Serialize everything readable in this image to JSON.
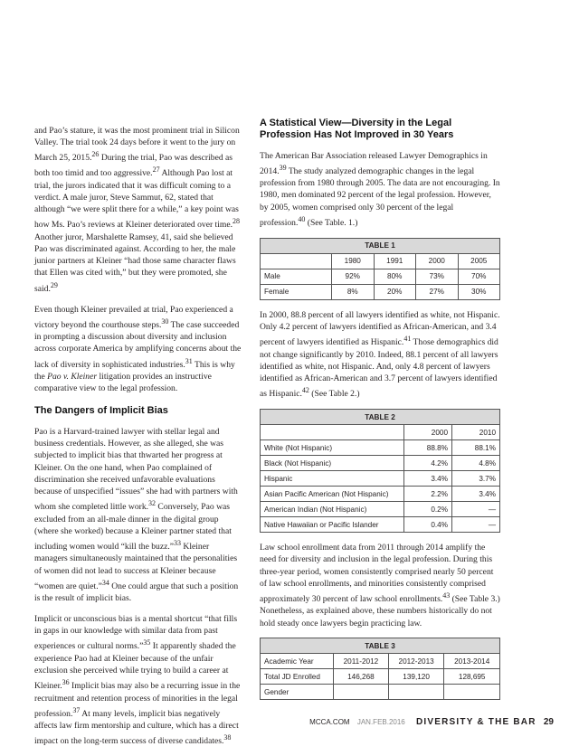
{
  "left_column": [
    {
      "paragraph": [
        "and Pao’s stature, it was the most prominent trial in Silicon Valley. The trial took 24 days before it went to the jury on March 25, 2015.",
        {
          "sup": "26"
        },
        " During the trial, Pao was described as both too timid and too aggressive.",
        {
          "sup": "27"
        },
        " Although Pao lost at trial, the jurors indicated that it was difficult coming to a verdict. A male juror, Steve Sammut, 62, stated that although “we were split there for a while,” a key point was how Ms. Pao’s reviews at Kleiner deteriorated over time.",
        {
          "sup": "28"
        },
        " Another juror, Marshalette Ramsey, 41, said she believed Pao was discriminated against. According to her, the male junior partners at Kleiner “had those same character flaws that Ellen was cited with,” but they were promoted, she said.",
        {
          "sup": "29"
        }
      ]
    },
    {
      "paragraph": [
        "Even though Kleiner prevailed at trial, Pao experienced a victory beyond the courthouse steps.",
        {
          "sup": "30"
        },
        " The case succeeded in prompting a discussion about diversity and inclusion across corporate America by amplifying concerns about the lack of diversity in sophisticated industries.",
        {
          "sup": "31"
        },
        " This is why the ",
        {
          "em": "Pao v. Kleiner"
        },
        " litigation provides an instructive comparative view to the legal profession."
      ]
    },
    {
      "heading": "The Dangers of Implicit Bias"
    },
    {
      "paragraph": [
        "Pao is a Harvard-trained lawyer with stellar legal and business credentials. However, as she alleged, she was subjected to implicit bias that thwarted her progress at Kleiner. On the one hand, when Pao complained of discrimination she received unfavorable evaluations because of unspecified “issues” she had with partners with whom she completed little work.",
        {
          "sup": "32"
        },
        " Conversely, Pao was excluded from an all-male dinner in the digital group (where she worked) because a Kleiner partner stated that including women would “kill the buzz.”",
        {
          "sup": "33"
        },
        " Kleiner managers simultaneously maintained that the personalities of women did not lead to success at Kleiner because “women are quiet.”",
        {
          "sup": "34"
        },
        " One could argue that such a position is the result of implicit bias."
      ]
    },
    {
      "paragraph": [
        "Implicit or unconscious bias is a mental shortcut “that fills in gaps in our knowledge with similar data from past experiences or cultural norms.”",
        {
          "sup": "35"
        },
        " It apparently shaded the experience Pao had at Kleiner because of the unfair exclusion she perceived while trying to build a career at Kleiner.",
        {
          "sup": "36"
        },
        " Implicit bias may also be a recurring issue in the recruitment and retention process of minorities in the legal profession.",
        {
          "sup": "37"
        },
        " At many levels, implicit bias negatively affects law firm mentorship and culture, which has a direct impact on the long-term success of diverse candidates.",
        {
          "sup": "38"
        }
      ]
    }
  ],
  "right_column": [
    {
      "heading": "A Statistical View—Diversity in the Legal Profession Has Not Improved in 30 Years"
    },
    {
      "paragraph": [
        "The American Bar Association released Lawyer Demographics in 2014.",
        {
          "sup": "39"
        },
        " The study analyzed demographic changes in the legal profession from 1980 through 2005. The data are not encouraging. In 1980, men dominated 92 percent of the legal profession. However, by 2005, women comprised only 30 percent of the legal profession.",
        {
          "sup": "40"
        },
        " (See Table. 1.)"
      ]
    },
    {
      "table": {
        "title": "TABLE 1",
        "columns": [
          "1980",
          "1991",
          "2000",
          "2005"
        ],
        "rows": [
          {
            "label": "Male",
            "cells": [
              "92%",
              "80%",
              "73%",
              "70%"
            ]
          },
          {
            "label": "Female",
            "cells": [
              "8%",
              "20%",
              "27%",
              "30%"
            ]
          }
        ]
      }
    },
    {
      "paragraph": [
        "In 2000, 88.8 percent of all lawyers identified as white, not Hispanic. Only 4.2 percent of lawyers identified as African-American, and 3.4 percent of lawyers identified as Hispanic.",
        {
          "sup": "41"
        },
        " Those demographics did not change significantly by 2010. Indeed, 88.1 percent of all lawyers identified as white, not Hispanic. And, only 4.8 percent of lawyers identified as African-American and 3.7 percent of lawyers identified as Hispanic.",
        {
          "sup": "42"
        },
        " (See Table 2.)"
      ]
    },
    {
      "table": {
        "title": "TABLE 2",
        "columns": [
          "2000",
          "2010"
        ],
        "rows": [
          {
            "label": "White (Not Hispanic)",
            "cells": [
              "88.8%",
              "88.1%"
            ]
          },
          {
            "label": "Black (Not Hispanic)",
            "cells": [
              "4.2%",
              "4.8%"
            ]
          },
          {
            "label": "Hispanic",
            "cells": [
              "3.4%",
              "3.7%"
            ]
          },
          {
            "label": "Asian Pacific American (Not Hispanic)",
            "cells": [
              "2.2%",
              "3.4%"
            ]
          },
          {
            "label": "American Indian (Not Hispanic)",
            "cells": [
              "0.2%",
              "—"
            ]
          },
          {
            "label": "Native Hawaiian or Pacific Islander",
            "cells": [
              "0.4%",
              "—"
            ]
          }
        ]
      }
    },
    {
      "paragraph": [
        "Law school enrollment data from 2011 through 2014 amplify the need for diversity and inclusion in the legal profession. During this three-year period, women consistently comprised nearly 50 percent of law school enrollments, and minorities consistently comprised approximately 30 percent of law school enrollments.",
        {
          "sup": "43"
        },
        " (See Table 3.) Nonetheless, as explained above, these numbers historically do not hold steady once lawyers begin practicing law."
      ]
    },
    {
      "table": {
        "title": "TABLE 3",
        "columns": [
          "Academic Year",
          "2011-2012",
          "2012-2013",
          "2013-2014"
        ],
        "rows": [
          {
            "label": "Total JD Enrolled",
            "cells": [
              "146,268",
              "139,120",
              "128,695"
            ]
          },
          {
            "label": "Gender"
          }
        ],
        "header_is_row": true
      }
    }
  ],
  "footer": {
    "site": "MCCA.COM",
    "issue": "JAN.FEB.2016",
    "magazine": "DIVERSITY & THE BAR",
    "page": "29"
  }
}
